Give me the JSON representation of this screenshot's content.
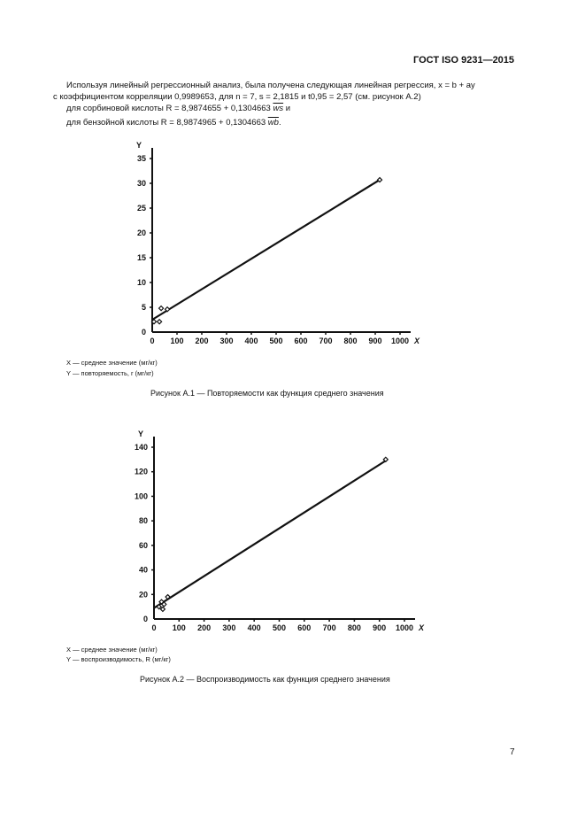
{
  "header": {
    "standard": "ГОСТ ISO 9231—2015"
  },
  "body": {
    "line1": "Используя линейный регрессионный анализ, была получена следующая линейная регрессия, x = b + ay",
    "line2": "с коэффициентом корреляции 0,9989653, для n = 7, s = 2,1815 и t0,95 = 2,57 (см. рисунок А.2)",
    "sorbic": "для сорбиновой кислоты R = 8,9874655 + 0,1304663",
    "sorbic_var": "ws",
    "sorbic_end": " и",
    "benzoic": "для бензойной кислоты R = 8,9874965 + 0,1304663",
    "benzoic_var": "wb",
    "benzoic_end": "."
  },
  "figure1": {
    "legend_x": "X — среднее значение (мг/кг)",
    "legend_y": "Y — повторяемость, r (мг/кг)",
    "caption": "Рисунок А.1 — Повторяемости как функция среднего значения"
  },
  "figure2": {
    "legend_x": "X — среднее значение (мг/кг)",
    "legend_y": "Y — воспроизводимость, R (мг/кг)",
    "caption": "Рисунок А.2 — Воспроизводимость как функция среднего значения"
  },
  "page_number": "7",
  "chart_data": [
    {
      "type": "scatter",
      "xlabel": "X",
      "ylabel": "Y",
      "xlim": [
        0,
        1000
      ],
      "ylim": [
        0,
        35
      ],
      "xticks": [
        0,
        100,
        200,
        300,
        400,
        500,
        600,
        700,
        800,
        900,
        1000
      ],
      "yticks": [
        0,
        5,
        10,
        15,
        20,
        25,
        30,
        35
      ],
      "points": {
        "x": [
          7,
          29,
          36,
          61,
          918
        ],
        "y": [
          2.1,
          2.1,
          4.8,
          4.6,
          30.7
        ]
      },
      "fit_line": {
        "x": [
          0,
          918
        ],
        "y": [
          2.5,
          30.7
        ]
      }
    },
    {
      "type": "scatter",
      "xlabel": "X",
      "ylabel": "Y",
      "xlim": [
        0,
        1000
      ],
      "ylim": [
        0,
        140
      ],
      "xticks": [
        0,
        100,
        200,
        300,
        400,
        500,
        600,
        700,
        800,
        900,
        1000
      ],
      "yticks": [
        0,
        20,
        40,
        60,
        80,
        100,
        120,
        140
      ],
      "points": {
        "x": [
          20,
          30,
          35,
          40,
          55,
          925
        ],
        "y": [
          10,
          14,
          8,
          12,
          18,
          130
        ]
      },
      "fit_line": {
        "x": [
          0,
          925
        ],
        "y": [
          9,
          129
        ]
      }
    }
  ]
}
